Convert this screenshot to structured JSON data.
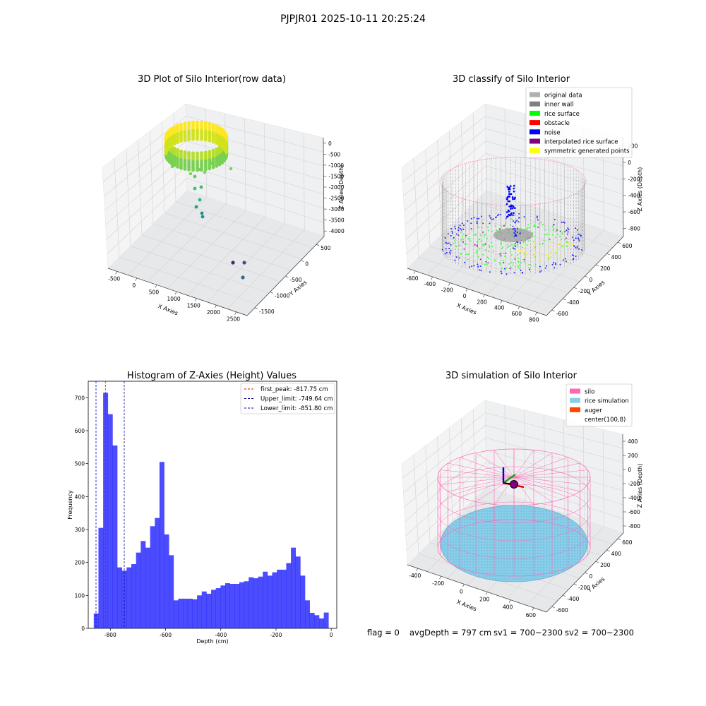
{
  "figure": {
    "title": "PJPJR01 2025-10-11 20:25:24"
  },
  "chart_data": [
    {
      "type": "scatter",
      "projection": "3d",
      "title": "3D Plot of Silo Interior(row data)",
      "xlabel": "X Axies",
      "ylabel": "Y Axies",
      "zlabel": "Z Axies (Depth)",
      "x_ticks": [
        "-500",
        "0",
        "500",
        "1000",
        "1500",
        "2000",
        "2500"
      ],
      "y_ticks": [
        "-1500",
        "-1000",
        "-500",
        "0",
        "500"
      ],
      "z_ticks": [
        "-4000",
        "-3500",
        "-3000",
        "-2500",
        "-2000",
        "-1500",
        "-1000",
        "-500",
        "0"
      ],
      "colormap": "viridis",
      "series": [
        {
          "role": "ring",
          "points": [
            [
              0,
              0,
              -300
            ],
            [
              300,
              0,
              -400
            ],
            [
              -300,
              0,
              -400
            ],
            [
              0,
              300,
              -350
            ],
            [
              0,
              -300,
              -350
            ]
          ]
        },
        {
          "role": "falling",
          "points": [
            [
              50,
              -50,
              -1500
            ],
            [
              60,
              -80,
              -2000
            ],
            [
              80,
              -100,
              -2500
            ],
            [
              90,
              -150,
              -3000
            ]
          ]
        },
        {
          "role": "outliers",
          "points": [
            [
              2300,
              -800,
              -4000
            ],
            [
              2450,
              -650,
              -4000
            ],
            [
              2500,
              -1100,
              -4000
            ]
          ]
        }
      ]
    },
    {
      "type": "scatter",
      "projection": "3d",
      "title": "3D classify of Silo Interior",
      "xlabel": "X Axies",
      "ylabel": "Y Axies",
      "zlabel": "Z Axies (Depth)",
      "x_ticks": [
        "-600",
        "-400",
        "-200",
        "0",
        "200",
        "400",
        "600",
        "800"
      ],
      "y_ticks": [
        "-600",
        "-400",
        "-200",
        "0",
        "200",
        "400",
        "600"
      ],
      "z_ticks": [
        "-800",
        "-600",
        "-400",
        "-200",
        "0",
        "200"
      ],
      "legend": {
        "position": "upper right",
        "entries": [
          {
            "label": "original data",
            "color": "#b0b0b0"
          },
          {
            "label": "inner wall",
            "color": "#808080"
          },
          {
            "label": "rice surface",
            "color": "#00ff00"
          },
          {
            "label": "obstacle",
            "color": "#ff0000"
          },
          {
            "label": "noise",
            "color": "#0000ff"
          },
          {
            "label": "interpolated rice surface",
            "color": "#800080"
          },
          {
            "label": "symmetric generated points",
            "color": "#ffff00"
          }
        ]
      }
    },
    {
      "type": "bar",
      "title": "Histogram of Z-Axies (Height) Values",
      "xlabel": "Depth (cm)",
      "ylabel": "Frequency",
      "xlim": [
        -880,
        20
      ],
      "ylim": [
        0,
        750
      ],
      "bin_start": -860,
      "bin_width": 17,
      "x_ticks": [
        "-800",
        "-600",
        "-400",
        "-200",
        "0"
      ],
      "y_ticks": [
        "0",
        "100",
        "200",
        "300",
        "400",
        "500",
        "600",
        "700"
      ],
      "bar_color": "#0000ff",
      "values": [
        45,
        305,
        715,
        650,
        555,
        185,
        175,
        185,
        195,
        230,
        265,
        245,
        310,
        335,
        505,
        285,
        222,
        85,
        90,
        90,
        90,
        88,
        100,
        112,
        105,
        117,
        122,
        130,
        137,
        135,
        135,
        140,
        143,
        155,
        152,
        157,
        172,
        160,
        170,
        178,
        178,
        198,
        245,
        218,
        160,
        85,
        47,
        40,
        30,
        48
      ],
      "legend": {
        "position": "upper right",
        "entries": [
          {
            "label": "first_peak: -817.75 cm",
            "value": -817.75,
            "color": "#ff0000"
          },
          {
            "label": "Upper_limit: -749.64 cm",
            "value": -749.64,
            "color": "#00008b"
          },
          {
            "label": "Lower_limit: -851.80 cm",
            "value": -851.8,
            "color": "#0000cd"
          }
        ]
      }
    },
    {
      "type": "scatter",
      "projection": "3d",
      "title": "3D simulation of Silo Interior",
      "xlabel": "X Axies",
      "ylabel": "Y Axies",
      "zlabel": "Z Axies (Depth)",
      "x_ticks": [
        "-400",
        "-200",
        "0",
        "200",
        "400",
        "600"
      ],
      "y_ticks": [
        "-600",
        "-400",
        "-200",
        "0",
        "200",
        "400",
        "600"
      ],
      "z_ticks": [
        "-800",
        "-600",
        "-400",
        "-200",
        "0",
        "200",
        "400"
      ],
      "legend": {
        "position": "upper right",
        "entries": [
          {
            "label": "silo",
            "color": "#ff69b4"
          },
          {
            "label": "rice simulation",
            "color": "#87ceeb"
          },
          {
            "label": "auger",
            "color": "#ff4500"
          },
          {
            "label": "center(100,8)",
            "color": "#ffffff"
          }
        ]
      }
    }
  ],
  "status": {
    "flag": "flag = 0",
    "avg_depth": "avgDepth = 797 cm",
    "sv1": "sv1 = 700~2300",
    "sv2": "sv2 = 700~2300"
  }
}
